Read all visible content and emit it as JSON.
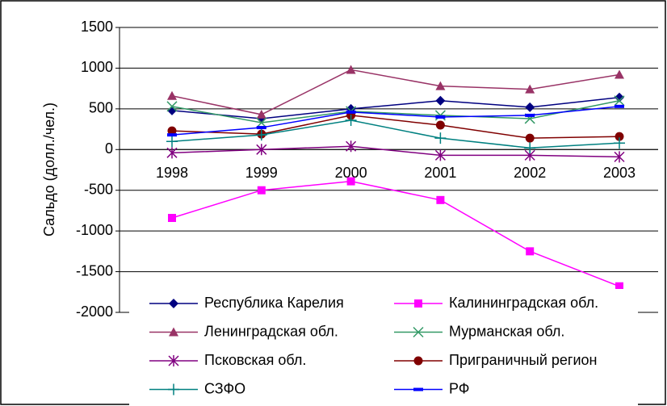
{
  "chart_data": {
    "type": "line",
    "y_label": "Сальдо (долл./чел.)",
    "categories": [
      "1998",
      "1999",
      "2000",
      "2001",
      "2002",
      "2003"
    ],
    "ylim": [
      -2000,
      1500
    ],
    "yticks": [
      -2000,
      -1500,
      -1000,
      -500,
      0,
      500,
      1000,
      1500
    ],
    "grid": true,
    "legend": "bottom",
    "series": [
      {
        "name": "Республика Карелия",
        "color": "#000080",
        "marker": "diamond",
        "values": [
          480,
          380,
          500,
          600,
          520,
          640
        ]
      },
      {
        "name": "Калининградская обл.",
        "color": "#ff00ff",
        "marker": "square",
        "values": [
          -840,
          -500,
          -390,
          -620,
          -1250,
          -1680
        ]
      },
      {
        "name": "Ленинградская обл.",
        "color": "#993366",
        "marker": "triangle",
        "values": [
          660,
          430,
          980,
          780,
          740,
          920
        ]
      },
      {
        "name": "Мурманская обл.",
        "color": "#339966",
        "marker": "x",
        "values": [
          530,
          330,
          470,
          420,
          380,
          600
        ]
      },
      {
        "name": "Псковская обл.",
        "color": "#800080",
        "marker": "star",
        "values": [
          -40,
          0,
          40,
          -70,
          -70,
          -90
        ]
      },
      {
        "name": "Приграничный регион",
        "color": "#800000",
        "marker": "circle",
        "values": [
          230,
          190,
          420,
          300,
          140,
          160
        ]
      },
      {
        "name": "СЗФО",
        "color": "#008080",
        "marker": "plus",
        "values": [
          100,
          180,
          360,
          140,
          20,
          80
        ]
      },
      {
        "name": "РФ",
        "color": "#0000ff",
        "marker": "dash",
        "values": [
          180,
          270,
          460,
          400,
          420,
          530
        ]
      }
    ]
  }
}
